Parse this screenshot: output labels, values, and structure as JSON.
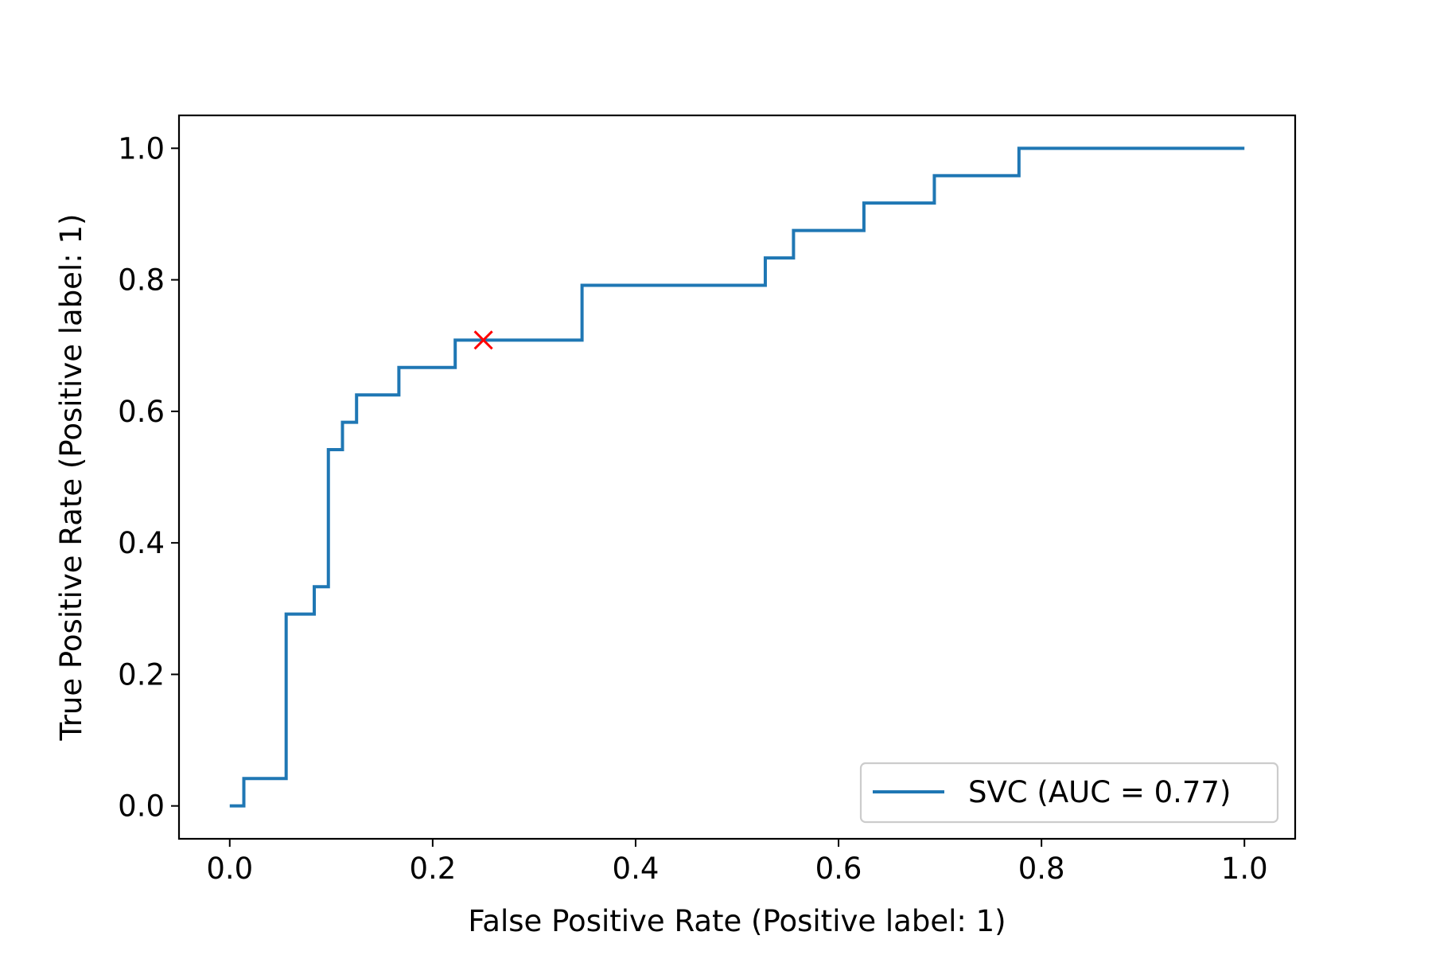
{
  "chart_data": {
    "type": "line",
    "title": "",
    "xlabel": "False Positive Rate (Positive label: 1)",
    "ylabel": "True Positive Rate (Positive label: 1)",
    "xlim": [
      -0.05,
      1.05
    ],
    "ylim": [
      -0.05,
      1.05
    ],
    "x_ticks": [
      0.0,
      0.2,
      0.4,
      0.6,
      0.8,
      1.0
    ],
    "y_ticks": [
      0.0,
      0.2,
      0.4,
      0.6,
      0.8,
      1.0
    ],
    "x_tick_labels": [
      "0.0",
      "0.2",
      "0.4",
      "0.6",
      "0.8",
      "1.0"
    ],
    "y_tick_labels": [
      "0.0",
      "0.2",
      "0.4",
      "0.6",
      "0.8",
      "1.0"
    ],
    "grid": false,
    "legend_position": "lower-right",
    "series": [
      {
        "name": "SVC (AUC = 0.77)",
        "color": "#1f77b4",
        "drawstyle": "steps-post",
        "x": [
          0.0,
          0.0139,
          0.0139,
          0.0556,
          0.0556,
          0.0833,
          0.0833,
          0.0972,
          0.0972,
          0.1111,
          0.1111,
          0.125,
          0.125,
          0.1667,
          0.1667,
          0.2222,
          0.2222,
          0.3472,
          0.3472,
          0.5278,
          0.5278,
          0.5556,
          0.5556,
          0.625,
          0.625,
          0.6944,
          0.6944,
          0.7778,
          0.7778,
          1.0
        ],
        "y": [
          0.0,
          0.0,
          0.0417,
          0.0417,
          0.2917,
          0.2917,
          0.3333,
          0.3333,
          0.5417,
          0.5417,
          0.5833,
          0.5833,
          0.625,
          0.625,
          0.6667,
          0.6667,
          0.7083,
          0.7083,
          0.7917,
          0.7917,
          0.8333,
          0.8333,
          0.875,
          0.875,
          0.9167,
          0.9167,
          0.9583,
          0.9583,
          1.0,
          1.0
        ]
      }
    ],
    "markers": [
      {
        "x": 0.25,
        "y": 0.7083,
        "symbol": "x",
        "color": "#ff0000"
      }
    ]
  }
}
